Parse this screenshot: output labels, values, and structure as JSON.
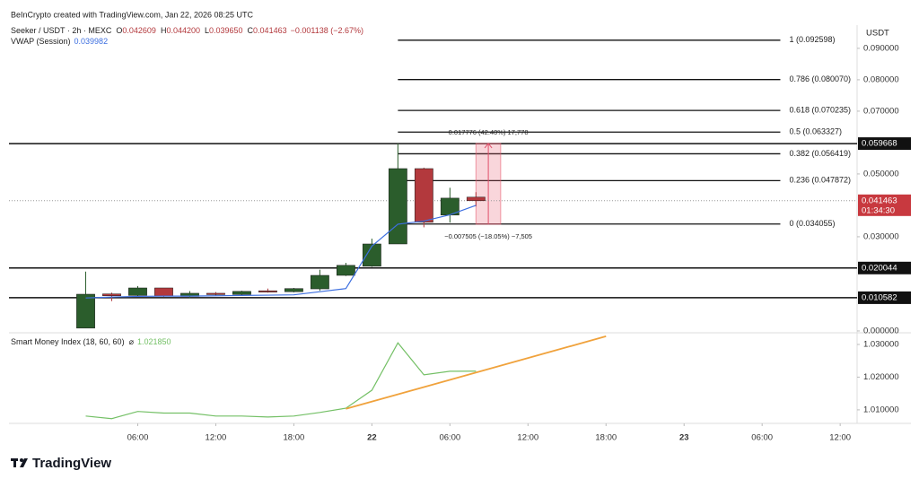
{
  "attribution": "BeInCrypto created with TradingView.com, Jan 22, 2026 08:25 UTC",
  "logo": "TradingView",
  "chart_data": {
    "type": "candlestick",
    "title": "Seeker / USDT · 2h · MEXC",
    "ohlc_legend": [
      {
        "label": "O",
        "value": "0.042609"
      },
      {
        "label": "H",
        "value": "0.044200"
      },
      {
        "label": "L",
        "value": "0.039650"
      },
      {
        "label": "C",
        "value": "0.041463"
      }
    ],
    "change": "−0.001138 (−2.67%)",
    "unit": "USDT",
    "x": [
      2,
      4,
      6,
      8,
      10,
      12,
      14,
      16,
      18,
      20,
      22,
      24,
      26,
      28,
      30,
      32
    ],
    "open": [
      0.0009,
      0.0118,
      0.0113,
      0.0137,
      0.011,
      0.012,
      0.0116,
      0.0128,
      0.0125,
      0.0134,
      0.0177,
      0.0206,
      0.0277,
      0.0517,
      0.0369,
      0.042609
    ],
    "high": [
      0.0189,
      0.0122,
      0.0143,
      0.0137,
      0.0127,
      0.0124,
      0.0128,
      0.0135,
      0.0137,
      0.0195,
      0.0217,
      0.0294,
      0.0597,
      0.052,
      0.0456,
      0.0442
    ],
    "low": [
      0.0009,
      0.0095,
      0.011,
      0.0108,
      0.0105,
      0.0113,
      0.0114,
      0.0122,
      0.0123,
      0.0128,
      0.0175,
      0.0204,
      0.0277,
      0.033,
      0.0345,
      0.03965
    ],
    "close": [
      0.0117,
      0.0112,
      0.0137,
      0.0111,
      0.012,
      0.0117,
      0.0126,
      0.0125,
      0.0135,
      0.0177,
      0.0209,
      0.0277,
      0.0517,
      0.0346,
      0.0423,
      0.041463
    ],
    "up_color": "#2b5d2c",
    "down_color": "#b3393d",
    "xlim": [
      -3.9,
      61.3
    ],
    "xticks": [
      {
        "value": 6,
        "label": "06:00"
      },
      {
        "value": 12,
        "label": "12:00"
      },
      {
        "value": 18,
        "label": "18:00"
      },
      {
        "value": 24,
        "label": "22"
      },
      {
        "value": 30,
        "label": "06:00"
      },
      {
        "value": 36,
        "label": "12:00"
      },
      {
        "value": 42,
        "label": "18:00"
      },
      {
        "value": 48,
        "label": "23"
      },
      {
        "value": 54,
        "label": "06:00"
      },
      {
        "value": 60,
        "label": "12:00"
      }
    ],
    "ylim": [
      -0.0003,
      0.0974
    ],
    "yticks": [
      {
        "value": 0.09,
        "label": "0.090000"
      },
      {
        "value": 0.08,
        "label": "0.080000"
      },
      {
        "value": 0.07,
        "label": "0.070000"
      },
      {
        "value": 0.05,
        "label": "0.050000"
      },
      {
        "value": 0.03,
        "label": "0.030000"
      },
      {
        "value": 0,
        "label": "0.000000"
      }
    ],
    "vwap": {
      "name": "VWAP (Session)",
      "value_label": "0.039982",
      "color": "#3d6fe0",
      "values": [
        0.0105,
        0.0108,
        0.011,
        0.0111,
        0.0111,
        0.0112,
        0.0113,
        0.0114,
        0.0115,
        0.0125,
        0.0135,
        0.027,
        0.034,
        0.035,
        0.037,
        0.039982
      ]
    },
    "hlines": [
      0.059668,
      0.020044,
      0.010582
    ],
    "last_price": {
      "value": 0.041463,
      "countdown": "01:34:30",
      "color": "#c8393f"
    },
    "fib": {
      "x": [
        26,
        55.4
      ],
      "levels": [
        {
          "value": 0.092598,
          "label": "1 (0.092598)"
        },
        {
          "value": 0.08007,
          "label": "0.786 (0.080070)"
        },
        {
          "value": 0.070235,
          "label": "0.618 (0.070235)"
        },
        {
          "value": 0.063327,
          "label": "0.5 (0.063327)"
        },
        {
          "value": 0.056419,
          "label": "0.382 (0.056419)"
        },
        {
          "value": 0.047872,
          "label": "0.236 (0.047872)"
        },
        {
          "value": 0.034055,
          "label": "0 (0.034055)"
        }
      ]
    },
    "measure": {
      "x": [
        32,
        33.9
      ],
      "y": [
        0.034,
        0.0597
      ],
      "top_label": "0.017776 (42.40%) 17,778",
      "bottom_label": "−0.007505 (−18.05%) −7,505"
    },
    "indicator": {
      "name": "Smart Money Index (18, 60, 60)",
      "symbol": "⌀",
      "value_label": "1.021850",
      "color": "#74c066",
      "values": [
        1.0081,
        1.0073,
        1.0095,
        1.009,
        1.009,
        1.0081,
        1.0081,
        1.0078,
        1.0081,
        1.0092,
        1.0105,
        1.016,
        1.0305,
        1.0207,
        1.0218,
        1.02185
      ],
      "y2lim": [
        1.0064,
        1.0333
      ],
      "y2ticks": [
        {
          "value": 1.03,
          "label": "1.030000"
        },
        {
          "value": 1.02,
          "label": "1.020000"
        },
        {
          "value": 1.01,
          "label": "1.010000"
        }
      ],
      "trendline": {
        "x": [
          22,
          42
        ],
        "y": [
          1.0103,
          1.0325
        ],
        "color": "#f0a23c"
      }
    }
  }
}
